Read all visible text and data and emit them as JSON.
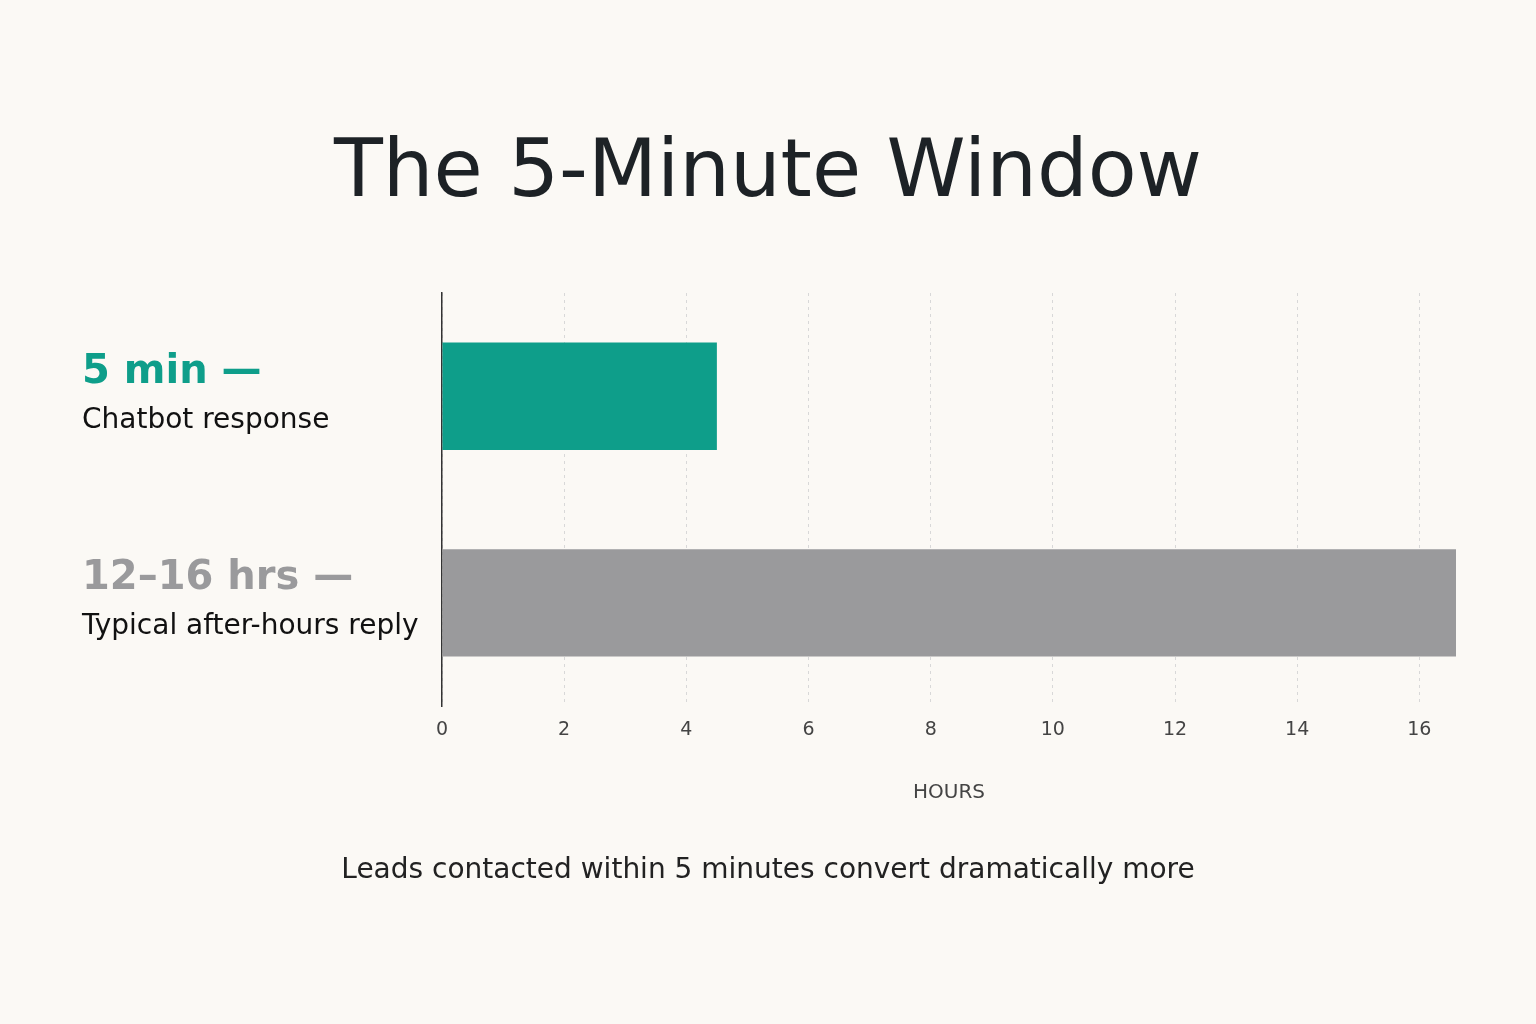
{
  "chart_data": {
    "type": "bar",
    "orientation": "horizontal",
    "title": "The 5-Minute Window",
    "xlabel": "HOURS",
    "categories": [
      "5 min —\nChatbot response",
      "12–16 hrs —\nTypical after-hours reply"
    ],
    "values": [
      4.5,
      16.6
    ],
    "colors": [
      "#0e9e8a",
      "#9a9a9c"
    ],
    "xlim": [
      0,
      16.6
    ],
    "xticks": [
      0,
      2,
      4,
      6,
      8,
      10,
      12,
      14,
      16
    ],
    "grid": "x",
    "legend": false,
    "annotations": [
      "Leads contacted within 5 minutes convert dramatically more"
    ]
  }
}
